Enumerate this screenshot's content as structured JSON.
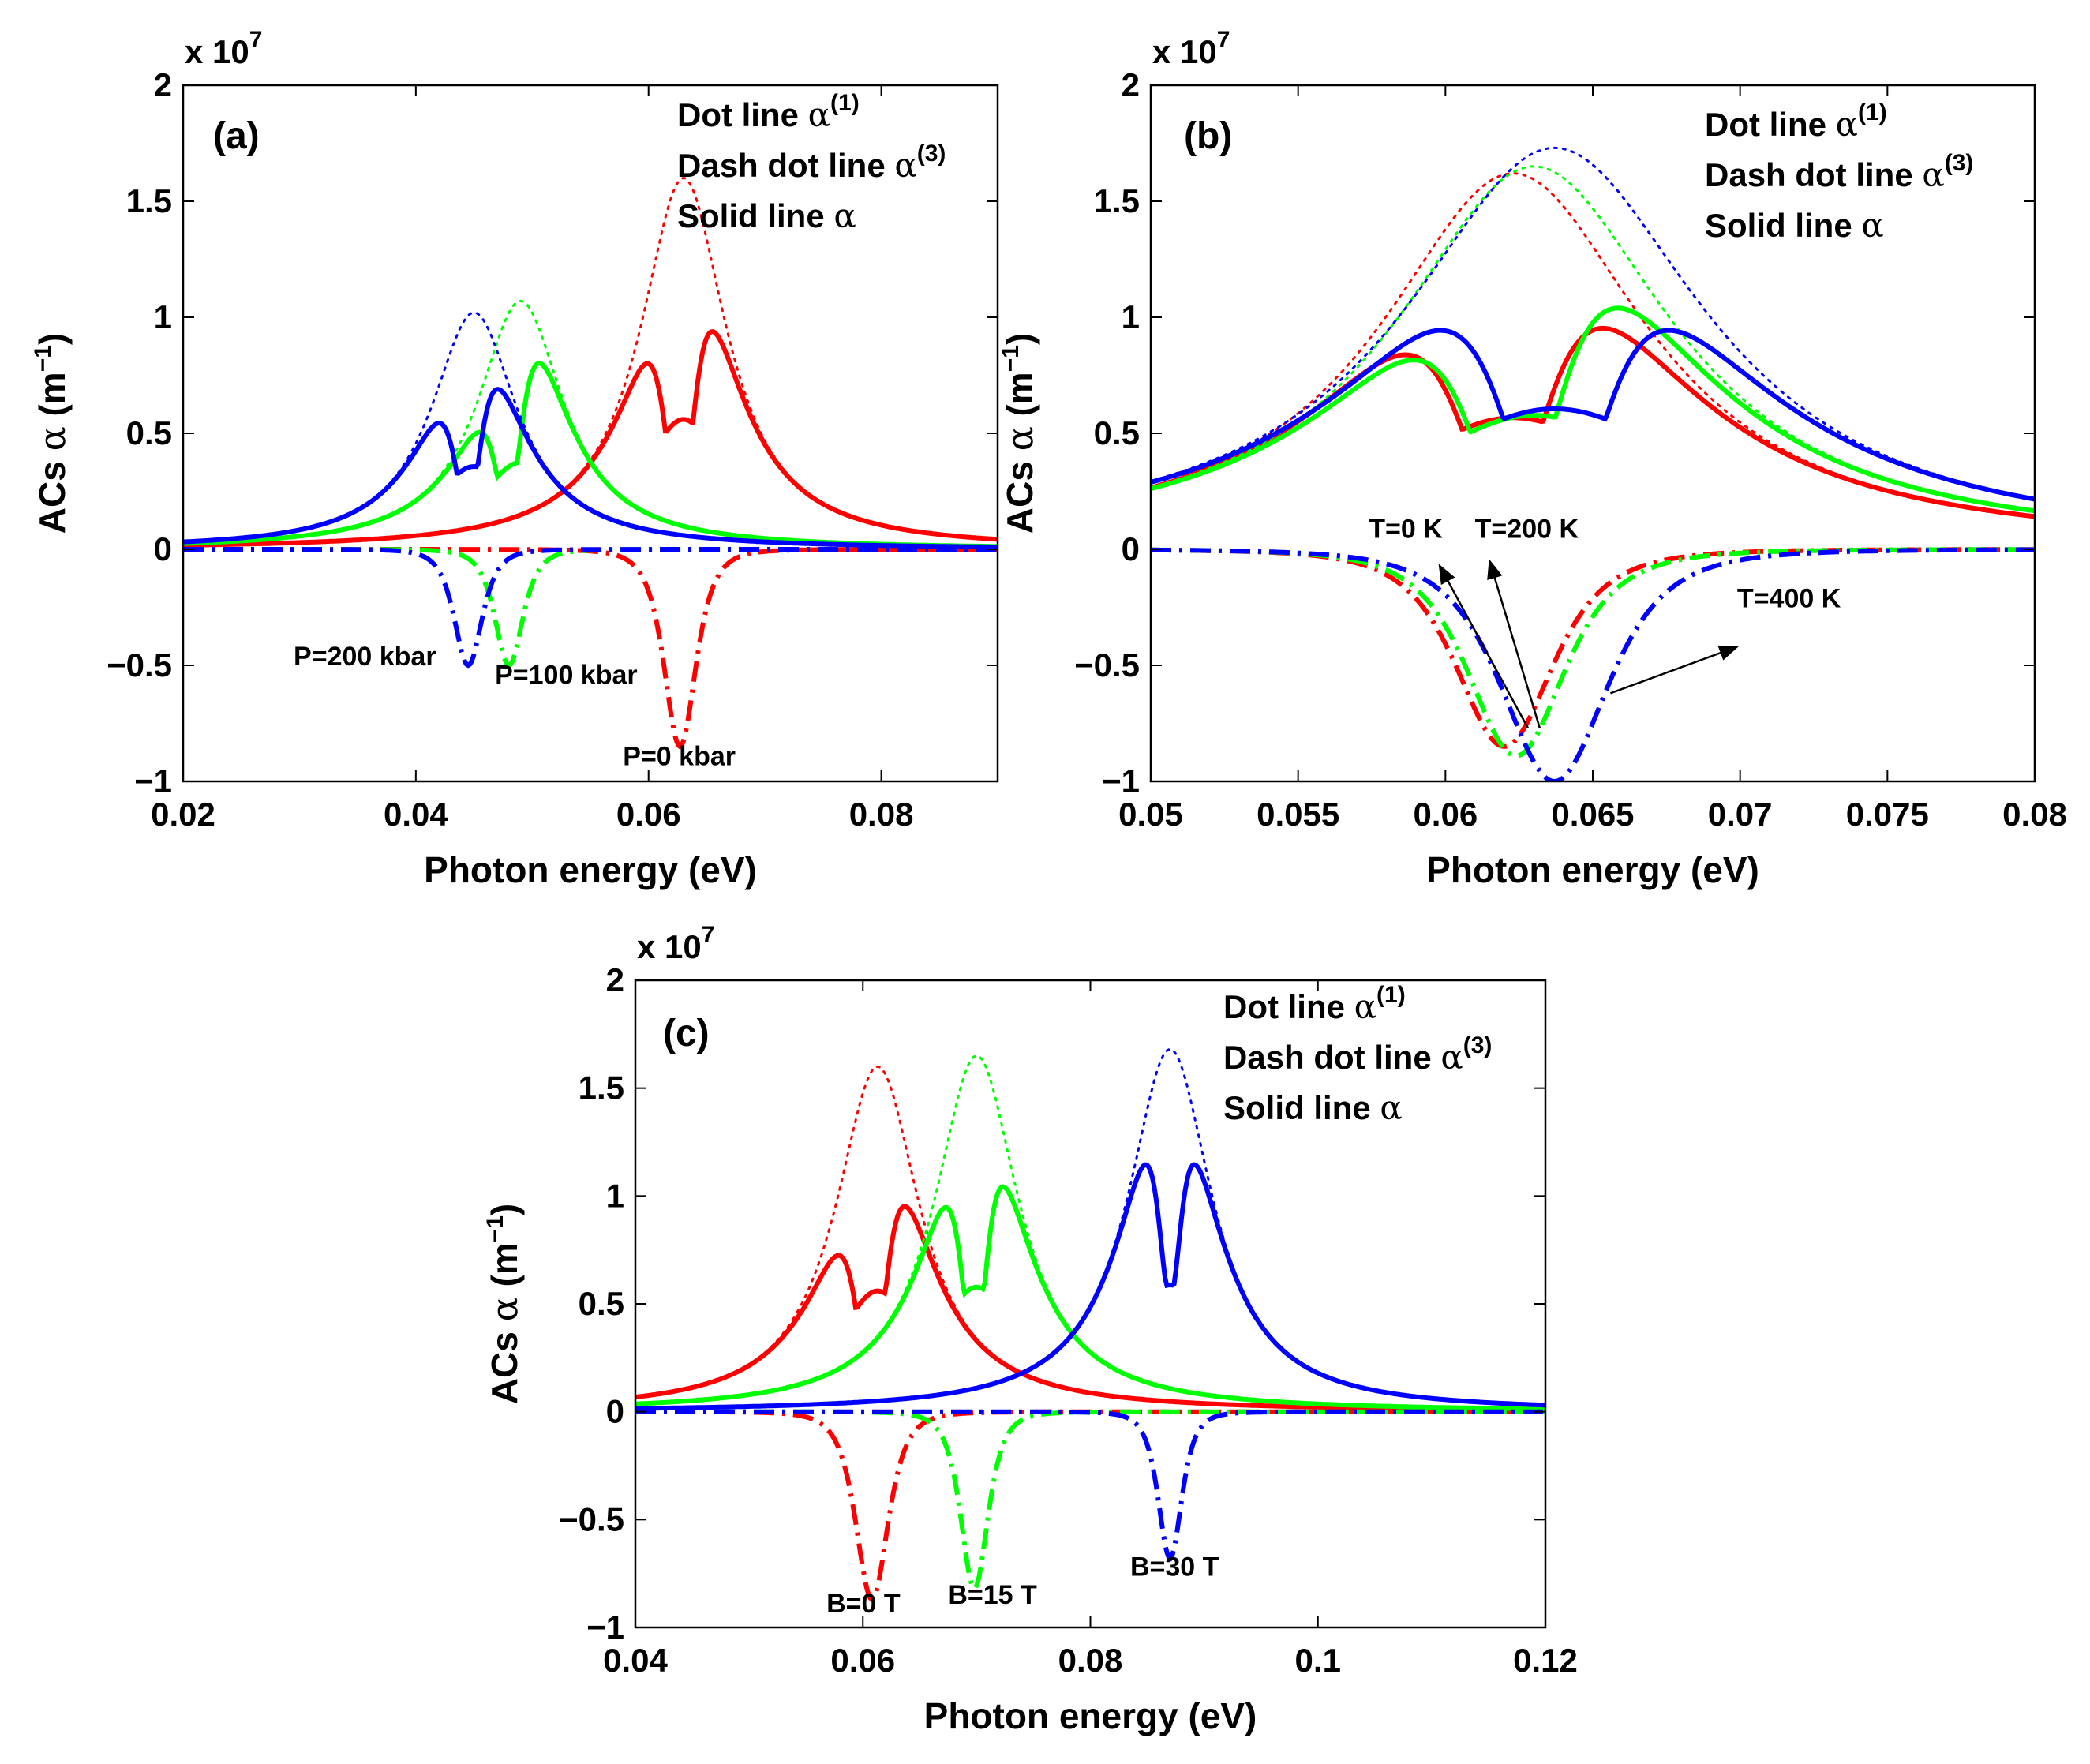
{
  "colors": {
    "red": "#ff0000",
    "green": "#00ff00",
    "blue": "#0000ff",
    "axis": "#000000"
  },
  "legend": [
    {
      "prefix": "Dot line ",
      "symbol": "α",
      "sup": "(1)"
    },
    {
      "prefix": "Dash dot line ",
      "symbol": "α",
      "sup": "(3)"
    },
    {
      "prefix": "Solid line ",
      "symbol": "α",
      "sup": ""
    }
  ],
  "chart_data": [
    {
      "type": "line",
      "panel_label": "(a)",
      "xlabel": "Photon energy (eV)",
      "ylabel": {
        "prefix": "ACs ",
        "symbol": "α",
        "unit_open": " (m",
        "unit_sup": "−1",
        "unit_close": ")"
      },
      "y_exponent": {
        "base": "x 10",
        "sup": "7"
      },
      "xlim": [
        0.02,
        0.09
      ],
      "ylim": [
        -1,
        2
      ],
      "x_ticks": [
        0.02,
        0.04,
        0.06,
        0.08
      ],
      "x_tick_labels": [
        "0.02",
        "0.04",
        "0.06",
        "0.08"
      ],
      "y_ticks": [
        -1,
        -0.5,
        0,
        0.5,
        1,
        1.5,
        2
      ],
      "y_tick_labels": [
        "−1",
        "−0.5",
        "0",
        "0.5",
        "1",
        "1.5",
        "2"
      ],
      "series": [
        {
          "color": "red",
          "linear": {
            "x0": 0.063,
            "peak": 1.6,
            "w": 0.0045
          },
          "third": {
            "x0": 0.0627,
            "depth": 0.85,
            "w": 0.0025
          }
        },
        {
          "color": "green",
          "linear": {
            "x0": 0.049,
            "peak": 1.07,
            "w": 0.0045
          },
          "third": {
            "x0": 0.048,
            "depth": 0.5,
            "w": 0.0022
          }
        },
        {
          "color": "blue",
          "linear": {
            "x0": 0.045,
            "peak": 1.02,
            "w": 0.0045
          },
          "third": {
            "x0": 0.0445,
            "depth": 0.5,
            "w": 0.0022
          }
        }
      ],
      "annotations": [
        {
          "text": "P=200 kbar",
          "x": 0.0295,
          "y": -0.5
        },
        {
          "text": "P=100 kbar",
          "x": 0.0468,
          "y": -0.58
        },
        {
          "text": "P=0 kbar",
          "x": 0.0578,
          "y": -0.93
        }
      ]
    },
    {
      "type": "line",
      "panel_label": "(b)",
      "xlabel": "Photon energy (eV)",
      "ylabel": {
        "prefix": "ACs ",
        "symbol": "α",
        "unit_open": " (m",
        "unit_sup": "−1",
        "unit_close": ")"
      },
      "y_exponent": {
        "base": "x 10",
        "sup": "7"
      },
      "xlim": [
        0.05,
        0.08
      ],
      "ylim": [
        -1,
        2
      ],
      "x_ticks": [
        0.05,
        0.055,
        0.06,
        0.065,
        0.07,
        0.075,
        0.08
      ],
      "x_tick_labels": [
        "0.05",
        "0.055",
        "0.06",
        "0.065",
        "0.07",
        "0.075",
        "0.08"
      ],
      "y_ticks": [
        -1,
        -0.5,
        0,
        0.5,
        1,
        1.5,
        2
      ],
      "y_tick_labels": [
        "−1",
        "−0.5",
        "0",
        "0.5",
        "1",
        "1.5",
        "2"
      ],
      "series": [
        {
          "color": "red",
          "linear": {
            "x0": 0.0623,
            "peak": 1.62,
            "w": 0.0055
          },
          "third": {
            "x0": 0.062,
            "depth": 0.85,
            "w": 0.003
          }
        },
        {
          "color": "green",
          "linear": {
            "x0": 0.063,
            "peak": 1.65,
            "w": 0.0057
          },
          "third": {
            "x0": 0.0624,
            "depth": 0.89,
            "w": 0.003
          }
        },
        {
          "color": "blue",
          "linear": {
            "x0": 0.0637,
            "peak": 1.73,
            "w": 0.0062
          },
          "third": {
            "x0": 0.0637,
            "depth": 1.0,
            "w": 0.0033
          }
        }
      ],
      "annotations": [
        {
          "text": "T=0 K",
          "x": 0.0574,
          "y": 0.05
        },
        {
          "text": "T=200 K",
          "x": 0.061,
          "y": 0.05
        },
        {
          "text": "T=400 K",
          "x": 0.0699,
          "y": -0.25
        }
      ],
      "arrows": [
        {
          "from": [
            0.0628,
            -0.77
          ],
          "to": [
            0.0598,
            -0.07
          ]
        },
        {
          "from": [
            0.0632,
            -0.77
          ],
          "to": [
            0.0615,
            -0.05
          ]
        },
        {
          "from": [
            0.0656,
            -0.62
          ],
          "to": [
            0.0699,
            -0.42
          ]
        }
      ]
    },
    {
      "type": "line",
      "panel_label": "(c)",
      "xlabel": "Photon energy (eV)",
      "ylabel": {
        "prefix": "ACs ",
        "symbol": "α",
        "unit_open": " (m",
        "unit_sup": "−1",
        "unit_close": ")"
      },
      "y_exponent": {
        "base": "x 10",
        "sup": "7"
      },
      "xlim": [
        0.04,
        0.12
      ],
      "ylim": [
        -1,
        2
      ],
      "x_ticks": [
        0.04,
        0.06,
        0.08,
        0.1,
        0.12
      ],
      "x_tick_labels": [
        "0.04",
        "0.06",
        "0.08",
        "0.1",
        "0.12"
      ],
      "y_ticks": [
        -1,
        -0.5,
        0,
        0.5,
        1,
        1.5,
        2
      ],
      "y_tick_labels": [
        "−1",
        "−0.5",
        "0",
        "0.5",
        "1",
        "1.5",
        "2"
      ],
      "series": [
        {
          "color": "red",
          "linear": {
            "x0": 0.0613,
            "peak": 1.6,
            "w": 0.0045
          },
          "third": {
            "x0": 0.0608,
            "depth": 0.87,
            "w": 0.0026
          }
        },
        {
          "color": "green",
          "linear": {
            "x0": 0.07,
            "peak": 1.65,
            "w": 0.0045
          },
          "third": {
            "x0": 0.0698,
            "depth": 0.82,
            "w": 0.0022
          }
        },
        {
          "color": "blue",
          "linear": {
            "x0": 0.087,
            "peak": 1.68,
            "w": 0.0045
          },
          "third": {
            "x0": 0.087,
            "depth": 0.68,
            "w": 0.0019
          }
        }
      ],
      "annotations": [
        {
          "text": "B=0 T",
          "x": 0.0568,
          "y": -0.93
        },
        {
          "text": "B=15 T",
          "x": 0.0675,
          "y": -0.89
        },
        {
          "text": "B=30 T",
          "x": 0.0835,
          "y": -0.76
        }
      ]
    }
  ]
}
